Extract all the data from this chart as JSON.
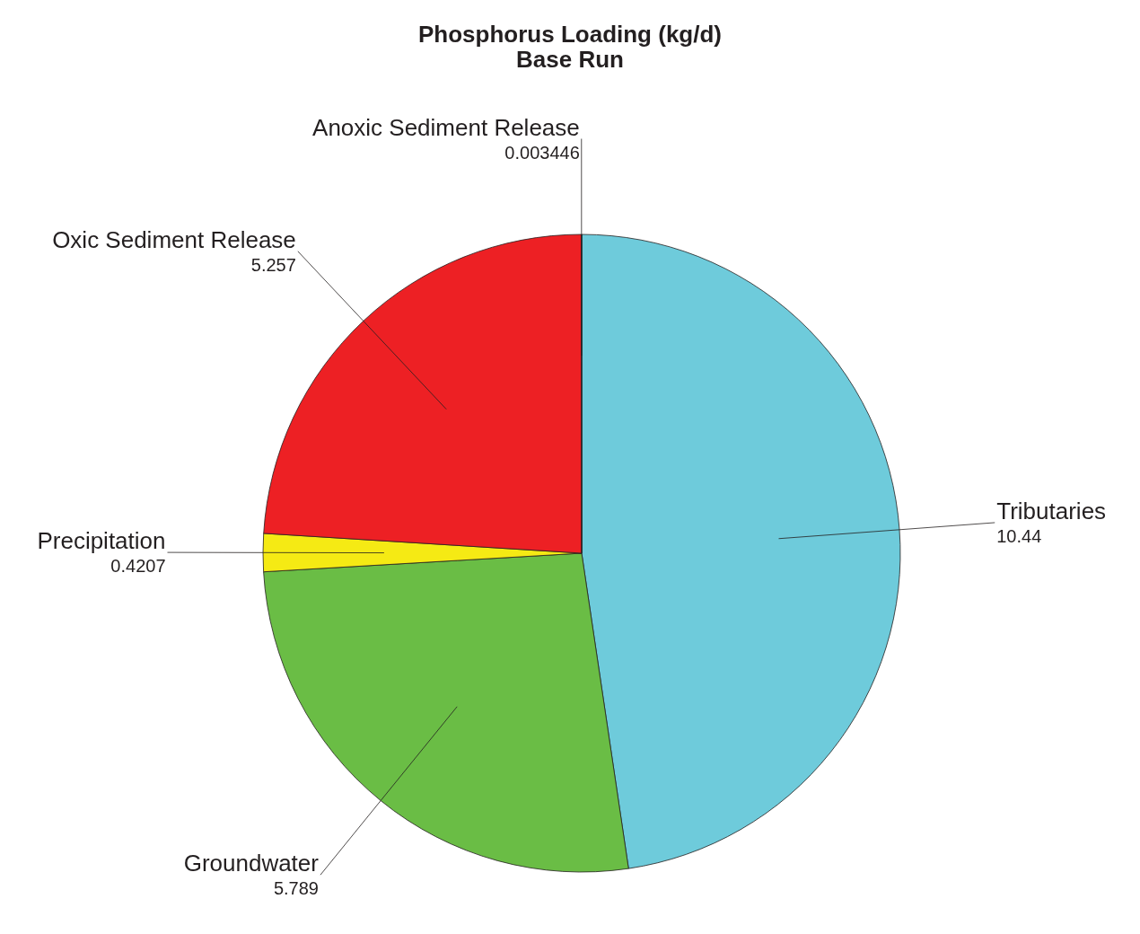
{
  "chart_data": {
    "type": "pie",
    "title": "Phosphorus Loading (kg/d)",
    "subtitle": "Base Run",
    "categories": [
      "Tributaries",
      "Groundwater",
      "Precipitation",
      "Oxic Sediment Release",
      "Anoxic Sediment Release"
    ],
    "values": [
      10.44,
      5.789,
      0.4207,
      5.257,
      0.003446
    ],
    "colors": [
      "#6ecbdb",
      "#6abd45",
      "#f5ea14",
      "#ed2024",
      "#7f3f98"
    ],
    "data_labels": true,
    "legend": false
  }
}
